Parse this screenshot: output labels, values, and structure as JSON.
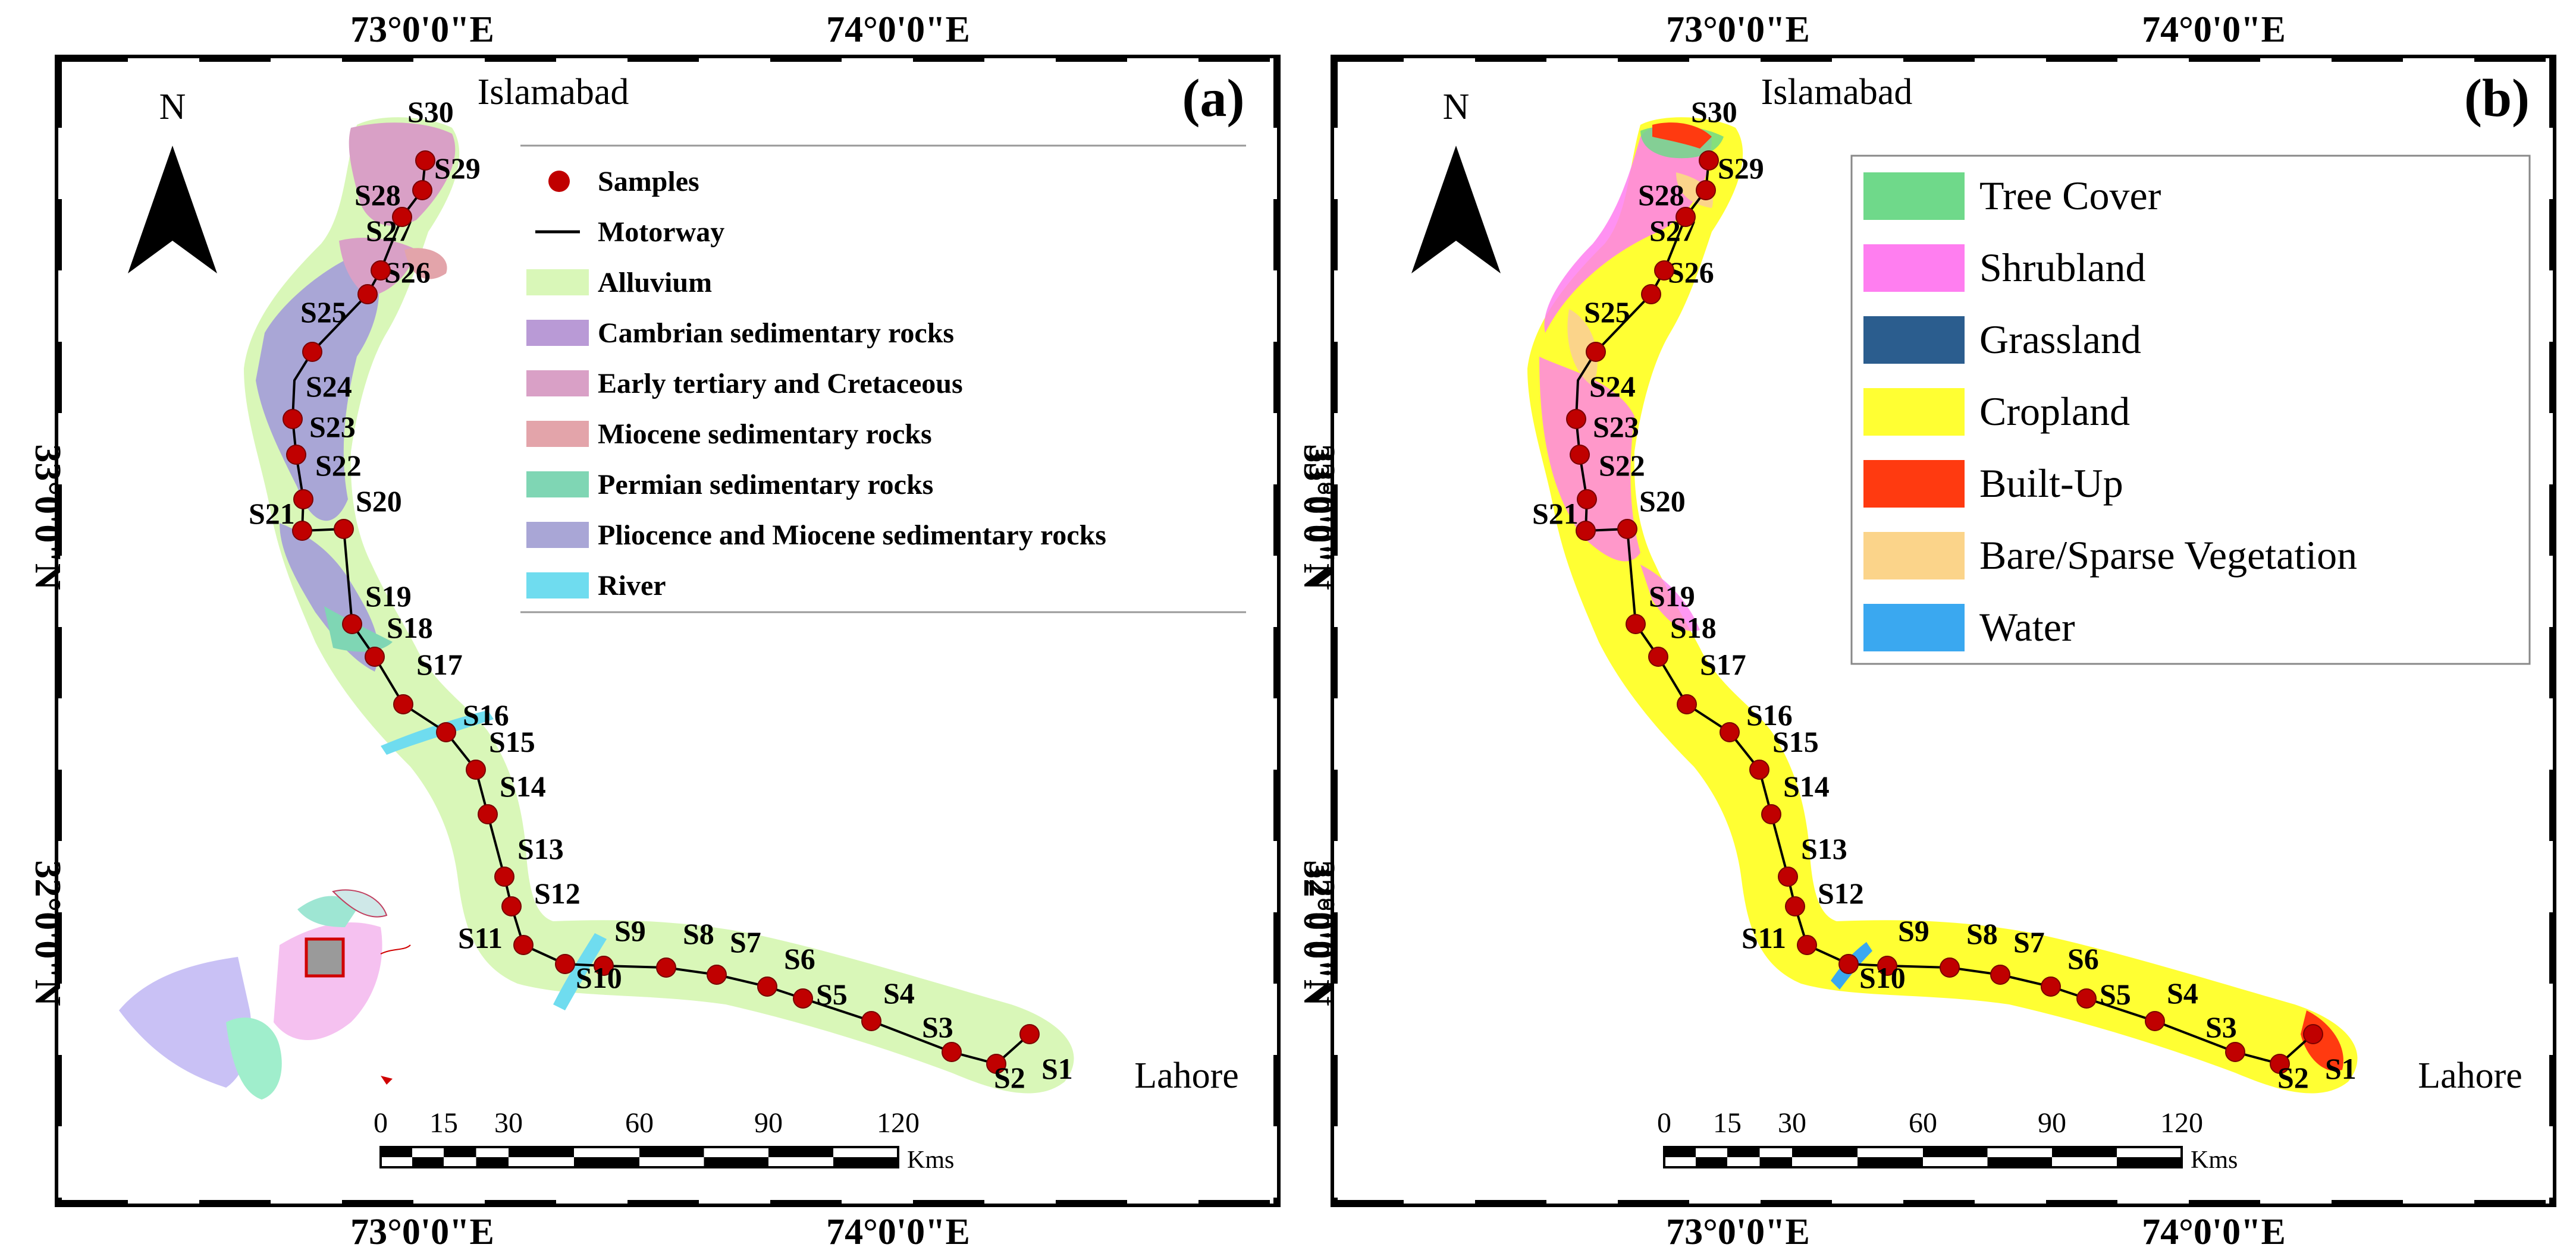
{
  "panels": [
    {
      "id": "a",
      "panel_label": "(a)",
      "north_label": "N",
      "top_coords": [
        "73°0'0\"E",
        "74°0'0\"E"
      ],
      "bottom_coords": [
        "73°0'0\"E",
        "74°0'0\"E"
      ],
      "side_coords": [
        "33°0'0\"N",
        "32°0'0\"N"
      ],
      "city_north": "Islamabad",
      "city_south": "Lahore",
      "scale_ticks": [
        "0",
        "15",
        "30",
        "60",
        "90",
        "120"
      ],
      "scale_unit": "Kms",
      "legend": [
        {
          "label": "Samples",
          "kind": "dot",
          "color": "#c00000"
        },
        {
          "label": "Motorway",
          "kind": "line",
          "color": "#000000"
        },
        {
          "label": "Alluvium",
          "kind": "patch",
          "color": "#d9f7b8"
        },
        {
          "label": "Cambrian sedimentary rocks",
          "kind": "patch",
          "color": "#b99ad6"
        },
        {
          "label": "Early tertiary and Cretaceous",
          "kind": "patch",
          "color": "#d9a0c6"
        },
        {
          "label": "Miocene sedimentary rocks",
          "kind": "patch",
          "color": "#e3a4aa"
        },
        {
          "label": "Permian sedimentary rocks",
          "kind": "patch",
          "color": "#7fd6b4"
        },
        {
          "label": "Pliocence and Miocene sedimentary rocks",
          "kind": "patch",
          "color": "#a9a6d6"
        },
        {
          "label": "River",
          "kind": "patch",
          "color": "#6fdcef"
        }
      ]
    },
    {
      "id": "b",
      "panel_label": "(b)",
      "north_label": "N",
      "top_coords": [
        "73°0'0\"E",
        "74°0'0\"E"
      ],
      "bottom_coords": [
        "73°0'0\"E",
        "74°0'0\"E"
      ],
      "side_coords": [
        "33°0'0\"N",
        "32°0'0\"N"
      ],
      "city_north": "Islamabad",
      "city_south": "Lahore",
      "scale_ticks": [
        "0",
        "15",
        "30",
        "60",
        "90",
        "120"
      ],
      "scale_unit": "Kms",
      "legend": [
        {
          "label": "Tree Cover",
          "kind": "patch",
          "color": "#6fd98a"
        },
        {
          "label": "Shrubland",
          "kind": "patch",
          "color": "#ff7ef0"
        },
        {
          "label": "Grassland",
          "kind": "patch",
          "color": "#2b5d8e"
        },
        {
          "label": "Cropland",
          "kind": "patch",
          "color": "#ffff33"
        },
        {
          "label": "Built-Up",
          "kind": "patch",
          "color": "#ff3a10"
        },
        {
          "label": "Bare/Sparse Vegetation",
          "kind": "patch",
          "color": "#fbd48a"
        },
        {
          "label": "Water",
          "kind": "patch",
          "color": "#3aa8f0"
        }
      ]
    }
  ],
  "samples": [
    "S1",
    "S2",
    "S3",
    "S4",
    "S5",
    "S6",
    "S7",
    "S8",
    "S9",
    "S10",
    "S11",
    "S12",
    "S13",
    "S14",
    "S15",
    "S16",
    "S17",
    "S18",
    "S19",
    "S20",
    "S21",
    "S22",
    "S23",
    "S24",
    "S25",
    "S26",
    "S27",
    "S28",
    "S29",
    "S30"
  ]
}
